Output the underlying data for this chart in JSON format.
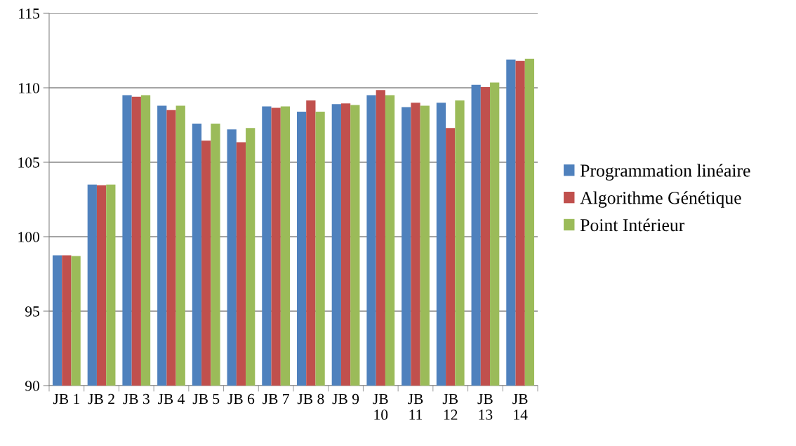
{
  "chart_data": {
    "type": "bar",
    "categories": [
      "JB 1",
      "JB 2",
      "JB 3",
      "JB 4",
      "JB 5",
      "JB 6",
      "JB 7",
      "JB 8",
      "JB 9",
      "JB 10",
      "JB 11",
      "JB 12",
      "JB 13",
      "JB 14"
    ],
    "series": [
      {
        "name": "Programmation linéaire",
        "color": "#4f81bd",
        "values": [
          98.75,
          103.5,
          109.5,
          108.8,
          107.6,
          107.2,
          108.75,
          108.4,
          108.9,
          109.5,
          108.7,
          109.0,
          110.2,
          111.9
        ]
      },
      {
        "name": "Algorithme Génétique",
        "color": "#c0504d",
        "values": [
          98.75,
          103.45,
          109.4,
          108.5,
          106.45,
          106.35,
          108.65,
          109.15,
          108.95,
          109.85,
          109.0,
          107.3,
          110.05,
          111.8
        ]
      },
      {
        "name": "Point Intérieur",
        "color": "#9bbb59",
        "values": [
          98.7,
          103.5,
          109.5,
          108.8,
          107.6,
          107.3,
          108.75,
          108.4,
          108.85,
          109.5,
          108.8,
          109.15,
          110.35,
          111.95
        ]
      }
    ],
    "ylim": [
      90,
      115
    ],
    "yticks": [
      90,
      95,
      100,
      105,
      110,
      115
    ],
    "grid": "y",
    "legend": "right"
  }
}
